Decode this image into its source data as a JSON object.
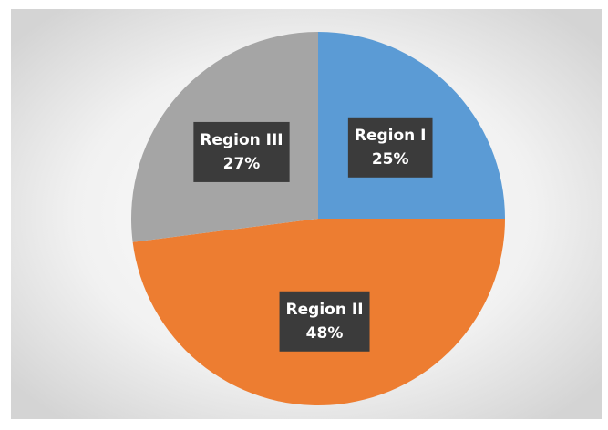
{
  "chart_data": {
    "type": "pie",
    "categories": [
      "Region I",
      "Region II",
      "Region III"
    ],
    "values": [
      25,
      48,
      27
    ],
    "value_labels": [
      "25%",
      "48%",
      "27%"
    ],
    "colors": [
      "#5b9bd5",
      "#ed7d31",
      "#a5a5a5"
    ]
  }
}
